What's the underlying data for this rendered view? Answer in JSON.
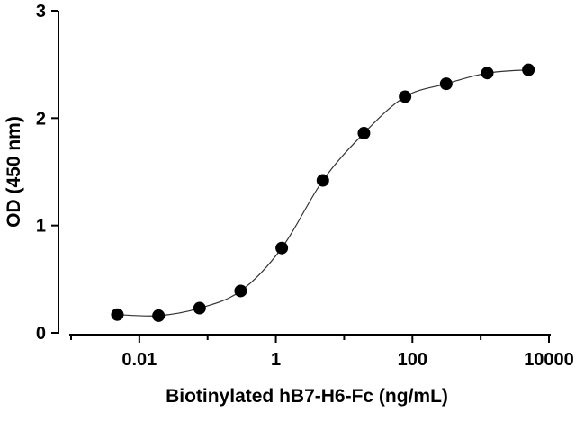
{
  "chart_data": {
    "type": "scatter",
    "x_label": "Biotinylated hB7-H6-Fc (ng/mL)",
    "y_label": "OD (450 nm)",
    "x_scale": "log",
    "xlim": [
      0.001,
      10000
    ],
    "xticks": [
      0.01,
      1,
      100,
      10000
    ],
    "xminorticks": [
      0.001,
      0.1,
      10,
      1000
    ],
    "ylim": [
      0,
      3
    ],
    "yticks": [
      0,
      1,
      2,
      3
    ],
    "color": "#000000",
    "fit_line": true,
    "x": [
      0.00477,
      0.0191,
      0.0763,
      0.305,
      1.22,
      4.88,
      19.5,
      78.1,
      312.5,
      1250,
      5000
    ],
    "values": [
      0.17,
      0.16,
      0.23,
      0.39,
      0.79,
      1.42,
      1.86,
      2.2,
      2.32,
      2.42,
      2.45
    ]
  }
}
